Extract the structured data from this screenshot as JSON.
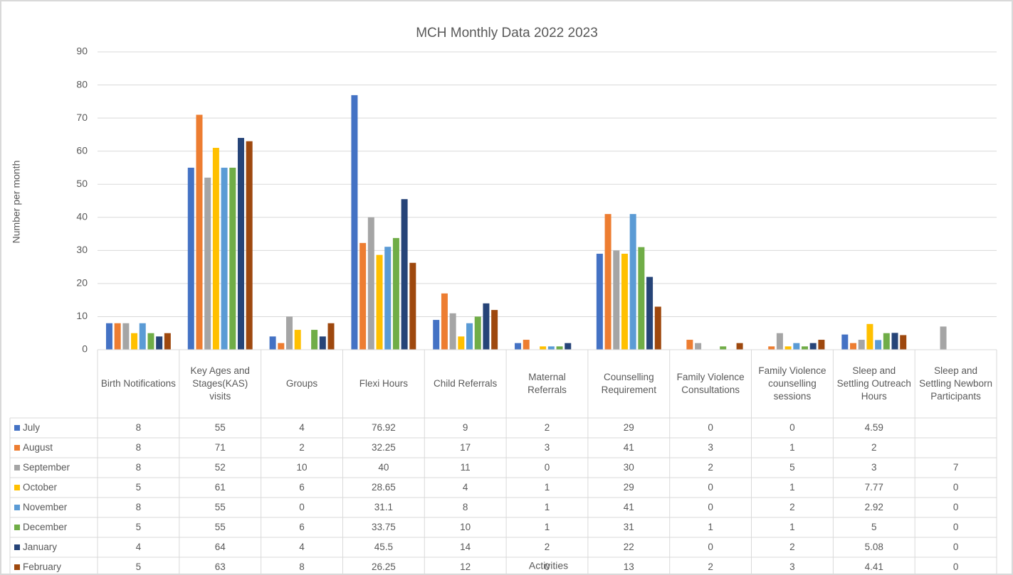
{
  "chart_data": {
    "type": "bar",
    "title": "MCH Monthly Data 2022 2023",
    "y_label": "Number per month",
    "x_label": "Activities",
    "categories": [
      "Birth Notifications",
      "Key Ages and Stages(KAS) visits",
      "Groups",
      "Flexi Hours",
      "Child Referrals",
      "Maternal Referrals",
      "Counselling Requirement",
      "Family Violence Consultations",
      "Family Violence counselling sessions",
      "Sleep and Settling Outreach Hours",
      "Sleep and Settling Newborn Participants"
    ],
    "series": [
      {
        "name": "July",
        "color": "#4472c4",
        "values": [
          8,
          55,
          4,
          76.92,
          9,
          2,
          29,
          0,
          0,
          4.59,
          null
        ]
      },
      {
        "name": "August",
        "color": "#ed7d31",
        "values": [
          8,
          71,
          2,
          32.25,
          17,
          3,
          41,
          3,
          1,
          2,
          null
        ]
      },
      {
        "name": "September",
        "color": "#a5a5a5",
        "values": [
          8,
          52,
          10,
          40,
          11,
          0,
          30,
          2,
          5,
          3,
          7
        ]
      },
      {
        "name": "October",
        "color": "#ffc000",
        "values": [
          5,
          61,
          6,
          28.65,
          4,
          1,
          29,
          0,
          1,
          7.77,
          0
        ]
      },
      {
        "name": "November",
        "color": "#5b9bd5",
        "values": [
          8,
          55,
          0,
          31.1,
          8,
          1,
          41,
          0,
          2,
          2.92,
          0
        ]
      },
      {
        "name": "December",
        "color": "#70ad47",
        "values": [
          5,
          55,
          6,
          33.75,
          10,
          1,
          31,
          1,
          1,
          5,
          0
        ]
      },
      {
        "name": "January",
        "color": "#264478",
        "values": [
          4,
          64,
          4,
          45.5,
          14,
          2,
          22,
          0,
          2,
          5.08,
          0
        ]
      },
      {
        "name": "February",
        "color": "#9e480e",
        "values": [
          5,
          63,
          8,
          26.25,
          12,
          0,
          13,
          2,
          3,
          4.41,
          0
        ]
      }
    ],
    "ylim": [
      0,
      90
    ],
    "yticks": [
      0,
      10,
      20,
      30,
      40,
      50,
      60,
      70,
      80,
      90
    ],
    "grid": true
  }
}
